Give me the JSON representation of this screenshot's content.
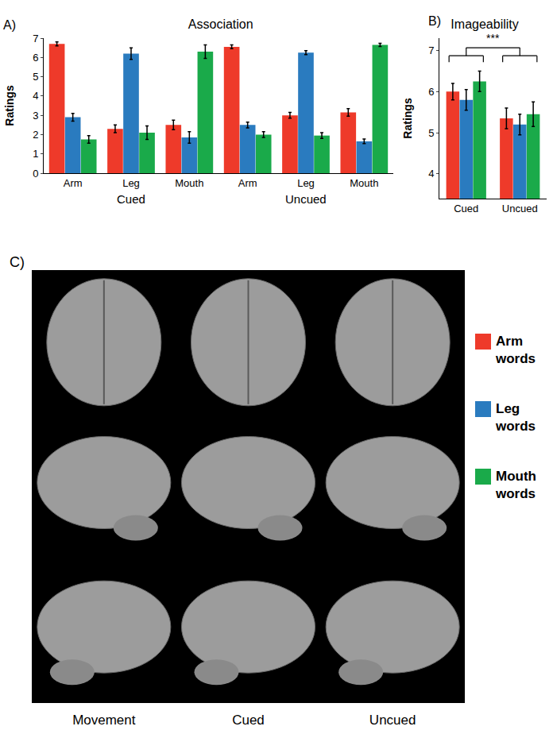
{
  "chart_data": [
    {
      "type": "bar",
      "panel": "A)",
      "title": "Association",
      "y_label": "Ratings",
      "categories": [
        "Arm",
        "Leg",
        "Mouth",
        "Arm",
        "Leg",
        "Mouth"
      ],
      "groups": [
        "Cued",
        "Cued",
        "Cued",
        "Uncued",
        "Uncued",
        "Uncued"
      ],
      "series": [
        {
          "color": "#ee3a2a",
          "values": [
            6.7,
            2.3,
            2.5,
            6.55,
            3.0,
            3.15
          ],
          "error": [
            0.1,
            0.2,
            0.25,
            0.1,
            0.15,
            0.2
          ]
        },
        {
          "color": "#2a7bbf",
          "values": [
            2.9,
            6.2,
            1.85,
            2.5,
            6.25,
            1.65
          ],
          "error": [
            0.2,
            0.3,
            0.3,
            0.15,
            0.1,
            0.12
          ]
        },
        {
          "color": "#1aaa4a",
          "values": [
            1.75,
            2.1,
            6.3,
            2.0,
            1.95,
            6.65
          ],
          "error": [
            0.2,
            0.35,
            0.35,
            0.15,
            0.15,
            0.08
          ]
        }
      ],
      "ylim": [
        0,
        7
      ],
      "yticks": [
        0,
        1,
        2,
        3,
        4,
        5,
        6,
        7
      ]
    },
    {
      "type": "bar",
      "panel": "B)",
      "title": "Imageability",
      "y_label": "Ratings",
      "categories": [
        "Cued",
        "Uncued"
      ],
      "series": [
        {
          "color": "#ee3a2a",
          "values": [
            6.0,
            5.35
          ],
          "error": [
            0.2,
            0.25
          ]
        },
        {
          "color": "#2a7bbf",
          "values": [
            5.8,
            5.2
          ],
          "error": [
            0.25,
            0.25
          ]
        },
        {
          "color": "#1aaa4a",
          "values": [
            6.25,
            5.45
          ],
          "error": [
            0.25,
            0.3
          ]
        }
      ],
      "ylim": [
        3.4,
        7.3
      ],
      "yticks": [
        4,
        5,
        6,
        7
      ],
      "annotations": [
        "***"
      ]
    }
  ],
  "panel_c": {
    "label": "C)",
    "legend": [
      {
        "label": "Arm words",
        "color": "#ee3a2a"
      },
      {
        "label": "Leg words",
        "color": "#2a7bbf"
      },
      {
        "label": "Mouth words",
        "color": "#1aaa4a"
      }
    ],
    "columns": [
      "Movement",
      "Cued",
      "Uncued"
    ]
  }
}
